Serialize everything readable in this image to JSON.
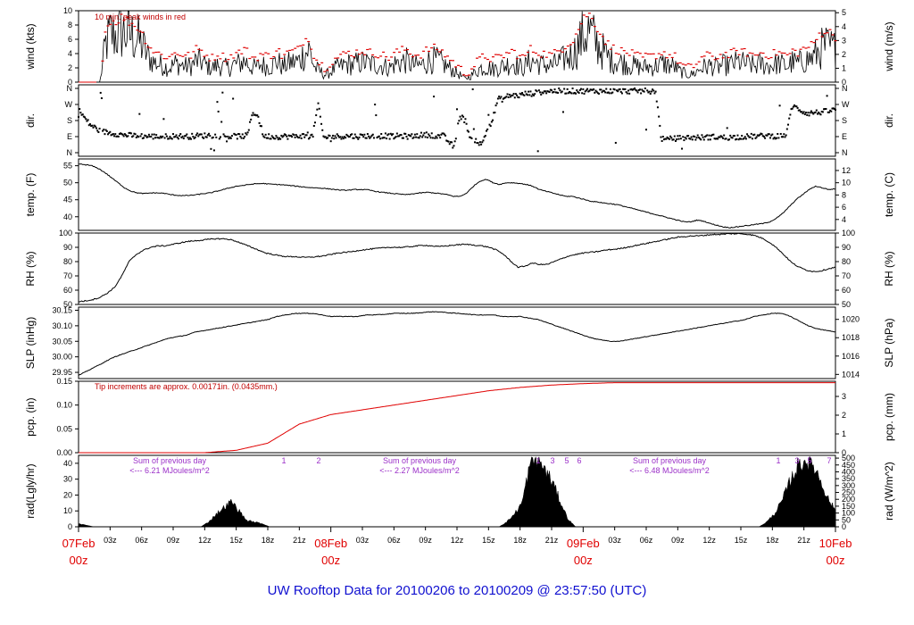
{
  "title": "UW Rooftop Data for 20100206  to  20100209 @ 23:57:50  (UTC)",
  "chart_data": {
    "type": "line",
    "x_days": [
      {
        "label": "07Feb",
        "sub": "00z"
      },
      {
        "label": "08Feb",
        "sub": "00z"
      },
      {
        "label": "09Feb",
        "sub": "00z"
      },
      {
        "label": "10Feb",
        "sub": "00z"
      }
    ],
    "x_hour_ticks": [
      "03z",
      "06z",
      "09z",
      "12z",
      "15z",
      "18z",
      "21z"
    ],
    "panels": [
      {
        "key": "wind",
        "left_label": "wind (kts)",
        "right_label": "wind (m/s)",
        "left_ticks": [
          0,
          2,
          4,
          6,
          8,
          10
        ],
        "left_range": [
          0,
          10
        ],
        "right_ticks": [
          0,
          1,
          2,
          3,
          4,
          5
        ],
        "annotation": "10 min. peak winds in red",
        "series_hourly": [
          0,
          0,
          0,
          0,
          0,
          5.2,
          6.8,
          6.5,
          7.2,
          6.8,
          6.5,
          6.0,
          5.0,
          3.5,
          2.8,
          2.5,
          2.2,
          2.0,
          2.6,
          2.4,
          2.2,
          2.3,
          3.0,
          2.8,
          2.2,
          2.0,
          2.4,
          2.1,
          2.0,
          2.5,
          2.6,
          3.0,
          2.2,
          2.0,
          2.5,
          2.2,
          2.3,
          3.0,
          2.1,
          2.6,
          2.8,
          2.9,
          4.0,
          4.5,
          2.0,
          1.5,
          1.0,
          1.5,
          2.0,
          2.2,
          2.6,
          2.4,
          2.7,
          2.8,
          2.6,
          2.5,
          2.4,
          2.2,
          2.0,
          2.6,
          2.8,
          3.0,
          2.5,
          2.3,
          2.4,
          2.9,
          3.1,
          3.0,
          2.5,
          2.0,
          1.5,
          1.0,
          0.5,
          0.8,
          1.5,
          2.0,
          2.2,
          1.8,
          2.0,
          2.2,
          2.5,
          2.8,
          2.2,
          2.0,
          3.0,
          2.8,
          2.5,
          2.4,
          2.3,
          2.6,
          3.0,
          3.5,
          3.8,
          5.0,
          6.5,
          7.2,
          6.0,
          5.0,
          4.0,
          3.2,
          3.0,
          2.8,
          2.6,
          2.4,
          2.2,
          2.0,
          2.2,
          2.1,
          2.4,
          2.6,
          2.3,
          2.2,
          1.5,
          1.2,
          1.0,
          1.4,
          2.0,
          2.2,
          2.3,
          2.0,
          2.4,
          2.3,
          2.6,
          2.8,
          2.6,
          2.5,
          2.2,
          2.6,
          2.4,
          2.3,
          2.6,
          2.5,
          2.2,
          2.8,
          2.6,
          3.0,
          3.2,
          3.5,
          4.5,
          5.0,
          4.8,
          4.5
        ],
        "peaks_hourly": [
          0,
          0,
          0,
          0,
          0,
          7.0,
          8.5,
          8.2,
          9.0,
          8.5,
          8.0,
          7.5,
          6.5,
          5.0,
          4.2,
          3.8,
          3.5,
          3.3,
          4.0,
          3.8,
          3.5,
          3.6,
          4.5,
          4.2,
          3.5,
          3.2,
          3.8,
          3.4,
          3.2,
          3.8,
          4.0,
          4.5,
          3.5,
          3.2,
          3.8,
          3.5,
          3.6,
          4.5,
          3.4,
          4.0,
          4.2,
          4.4,
          5.8,
          6.0,
          3.2,
          2.5,
          1.8,
          2.6,
          3.2,
          3.5,
          4.0,
          3.8,
          4.1,
          4.2,
          4.0,
          3.9,
          3.8,
          3.5,
          3.2,
          4.0,
          4.2,
          4.5,
          3.9,
          3.6,
          3.8,
          4.4,
          4.6,
          4.5,
          3.9,
          3.2,
          2.5,
          1.8,
          1.0,
          1.5,
          2.5,
          3.2,
          3.5,
          3.0,
          3.2,
          3.5,
          3.9,
          4.2,
          3.5,
          3.2,
          4.5,
          4.2,
          3.9,
          3.8,
          3.6,
          4.0,
          4.5,
          5.2,
          5.6,
          7.0,
          8.8,
          9.5,
          8.2,
          7.0,
          5.8,
          4.8,
          4.5,
          4.2,
          4.0,
          3.8,
          3.5,
          3.2,
          3.5,
          3.4,
          3.8,
          4.0,
          3.6,
          3.5,
          2.5,
          2.0,
          1.8,
          2.3,
          3.2,
          3.5,
          3.6,
          3.2,
          3.8,
          3.6,
          4.0,
          4.2,
          4.0,
          3.9,
          3.5,
          4.0,
          3.8,
          3.6,
          4.0,
          3.9,
          3.5,
          4.2,
          4.0,
          4.5,
          4.8,
          5.2,
          6.5,
          7.0,
          6.8,
          6.2
        ]
      },
      {
        "key": "dir",
        "left_label": "dir.",
        "right_label": "dir.",
        "ticks": [
          "N",
          "W",
          "S",
          "E",
          "N"
        ],
        "range": [
          0,
          360
        ],
        "series_hourly": [
          240,
          200,
          160,
          140,
          120,
          115,
          110,
          105,
          100,
          98,
          95,
          95,
          92,
          92,
          90,
          90,
          90,
          92,
          92,
          92,
          90,
          92,
          95,
          95,
          98,
          95,
          92,
          92,
          90,
          92,
          92,
          95,
          230,
          200,
          90,
          92,
          88,
          90,
          92,
          90,
          92,
          95,
          90,
          92,
          270,
          85,
          88,
          90,
          92,
          92,
          95,
          90,
          92,
          95,
          90,
          92,
          95,
          92,
          90,
          95,
          92,
          90,
          95,
          98,
          100,
          98,
          92,
          95,
          60,
          30,
          210,
          180,
          80,
          70,
          40,
          130,
          180,
          300,
          300,
          320,
          320,
          320,
          330,
          330,
          335,
          340,
          345,
          345,
          345,
          345,
          345,
          345,
          345,
          345,
          345,
          345,
          345,
          345,
          345,
          345,
          345,
          345,
          345,
          345,
          345,
          345,
          345,
          80,
          70,
          80,
          80,
          82,
          84,
          85,
          85,
          85,
          88,
          88,
          85,
          85,
          86,
          88,
          90,
          90,
          92,
          92,
          95,
          95,
          92,
          95,
          100,
          260,
          250,
          230,
          220,
          225,
          225,
          230,
          235,
          240
        ]
      },
      {
        "key": "temp",
        "left_label": "temp. (F)",
        "right_label": "temp. (C)",
        "left_ticks": [
          40,
          45,
          50,
          55
        ],
        "left_range": [
          36,
          57
        ],
        "right_ticks": [
          4,
          6,
          8,
          10,
          12
        ],
        "series_hourly": [
          55.5,
          55.3,
          55.0,
          54.2,
          53.0,
          51.5,
          50.0,
          48.5,
          47.5,
          47.0,
          46.8,
          47.0,
          47.0,
          46.9,
          46.5,
          46.3,
          46.2,
          46.3,
          46.5,
          46.8,
          47.0,
          47.5,
          48.0,
          48.5,
          49.0,
          49.2,
          49.5,
          49.7,
          49.8,
          49.6,
          49.5,
          49.4,
          49.2,
          49.0,
          48.8,
          48.6,
          48.5,
          48.4,
          48.2,
          48.0,
          47.8,
          47.8,
          48.0,
          48.0,
          47.9,
          47.5,
          47.2,
          47.0,
          46.8,
          46.6,
          46.5,
          46.8,
          47.0,
          47.2,
          47.0,
          46.8,
          46.5,
          46.0,
          46.0,
          47.0,
          49.0,
          50.5,
          51.0,
          50.0,
          49.5,
          50.0,
          50.0,
          49.8,
          49.5,
          49.0,
          48.0,
          47.5,
          47.0,
          46.5,
          46.0,
          46.0,
          45.5,
          45.0,
          44.5,
          44.3,
          44.0,
          43.8,
          43.5,
          43.0,
          42.5,
          42.0,
          41.5,
          41.0,
          40.5,
          40.0,
          39.5,
          39.0,
          38.5,
          38.5,
          39.0,
          38.7,
          38.0,
          37.5,
          37.0,
          36.8,
          37.0,
          37.3,
          37.5,
          37.8,
          38.0,
          38.5,
          39.5,
          41.0,
          43.0,
          45.0,
          46.5,
          48.0,
          49.0,
          48.5,
          48.0,
          48.2
        ]
      },
      {
        "key": "rh",
        "left_label": "RH (%)",
        "right_label": "RH (%)",
        "left_ticks": [
          50,
          60,
          70,
          80,
          90,
          100
        ],
        "left_range": [
          50,
          100
        ],
        "right_ticks": [
          50,
          60,
          70,
          80,
          90,
          100
        ],
        "series_hourly": [
          52,
          52.5,
          53.5,
          55,
          58,
          62,
          70,
          80,
          85,
          88,
          90,
          91,
          91,
          92,
          93,
          94,
          94.5,
          95,
          95.5,
          96,
          96,
          95.5,
          94,
          92,
          90,
          88,
          86,
          85,
          84,
          83.5,
          83.5,
          83,
          83,
          83.5,
          84,
          85,
          86,
          86.5,
          87,
          88,
          88.5,
          89,
          89.5,
          90,
          90,
          90,
          90.5,
          91,
          91.5,
          91,
          90.5,
          91,
          91.5,
          92,
          92,
          91.5,
          91,
          90,
          88,
          85,
          80,
          76,
          77,
          79,
          78,
          78,
          80,
          82,
          84,
          85,
          86,
          86.5,
          87,
          88,
          88.5,
          89,
          90,
          91,
          92,
          93,
          94,
          95,
          96,
          97,
          97.5,
          98,
          98,
          98.5,
          99,
          99,
          99.5,
          99.5,
          99.5,
          99,
          98,
          96,
          93,
          89,
          84,
          79,
          76,
          74,
          73,
          73.5,
          75,
          76
        ]
      },
      {
        "key": "slp",
        "left_label": "SLP (inHg)",
        "right_label": "SLP (hPa)",
        "left_ticks": [
          29.95,
          30.0,
          30.05,
          30.1,
          30.15
        ],
        "left_range": [
          29.93,
          30.16
        ],
        "right_ticks": [
          1014,
          1016,
          1018,
          1020
        ],
        "series_hourly": [
          29.94,
          29.955,
          29.97,
          29.985,
          30.0,
          30.01,
          30.02,
          30.03,
          30.04,
          30.05,
          30.06,
          30.065,
          30.07,
          30.08,
          30.085,
          30.09,
          30.095,
          30.1,
          30.105,
          30.11,
          30.115,
          30.12,
          30.13,
          30.135,
          30.14,
          30.14,
          30.14,
          30.135,
          30.13,
          30.13,
          30.13,
          30.13,
          30.135,
          30.135,
          30.137,
          30.14,
          30.14,
          30.14,
          30.142,
          30.145,
          30.145,
          30.142,
          30.14,
          30.138,
          30.135,
          30.135,
          30.135,
          30.13,
          30.13,
          30.13,
          30.125,
          30.12,
          30.11,
          30.1,
          30.09,
          30.08,
          30.07,
          30.06,
          30.055,
          30.05,
          30.05,
          30.055,
          30.06,
          30.065,
          30.07,
          30.075,
          30.08,
          30.085,
          30.09,
          30.095,
          30.1,
          30.105,
          30.11,
          30.115,
          30.12,
          30.13,
          30.135,
          30.14,
          30.14,
          30.13,
          30.115,
          30.1,
          30.09,
          30.085,
          30.08
        ]
      },
      {
        "key": "pcp",
        "left_label": "pcp. (in)",
        "right_label": "pcp. (mm)",
        "left_ticks": [
          0.0,
          0.05,
          0.1,
          0.15
        ],
        "left_range": [
          0,
          0.15
        ],
        "right_ticks": [
          0,
          1,
          2,
          3
        ],
        "annotation": "Tip increments are approx. 0.00171in. (0.0435mm.)",
        "series_hourly": [
          0,
          0,
          0,
          0,
          0,
          0.005,
          0.02,
          0.06,
          0.08,
          0.09,
          0.1,
          0.11,
          0.12,
          0.13,
          0.137,
          0.142,
          0.145,
          0.147,
          0.147,
          0.147,
          0.147,
          0.147,
          0.147,
          0.147,
          0.147
        ]
      },
      {
        "key": "rad",
        "left_label": "rad(Lgly/hr)",
        "right_label": "rad (W/m^2)",
        "left_ticks": [
          0,
          10,
          20,
          30,
          40
        ],
        "left_range": [
          0,
          45
        ],
        "right_ticks": [
          0,
          50,
          100,
          150,
          200,
          250,
          300,
          350,
          400,
          450,
          500
        ],
        "series_hourly": [
          2,
          1,
          0,
          0,
          0,
          0,
          0,
          0,
          0,
          0,
          0,
          0,
          0,
          0,
          0,
          0,
          0,
          3,
          8,
          12,
          16,
          10,
          4,
          3,
          2,
          0,
          0,
          0,
          0,
          0,
          0,
          0,
          0,
          0,
          0,
          0,
          0,
          0,
          0,
          0,
          0,
          0,
          0,
          0,
          0,
          0,
          0,
          0,
          0,
          0,
          0,
          0,
          0,
          0,
          0,
          0,
          3,
          8,
          15,
          38,
          44,
          36,
          28,
          16,
          5,
          0,
          0,
          0,
          0,
          0,
          0,
          0,
          0,
          0,
          0,
          0,
          0,
          0,
          0,
          0,
          0,
          0,
          0,
          0,
          0,
          0,
          0,
          0,
          0,
          0,
          3,
          8,
          16,
          28,
          38,
          42,
          40,
          30,
          18,
          10
        ],
        "notes": [
          {
            "text": "Sum of previous day",
            "value": "<--- 6.21 MJoules/m^2"
          },
          {
            "text": "Sum of previous day",
            "value": "<--- 2.27 MJoules/m^2"
          },
          {
            "text": "Sum of previous day",
            "value": "<--- 6.48 MJoules/m^2"
          }
        ],
        "peak_marks": [
          {
            "day": 0,
            "labels": [
              "1",
              "2"
            ]
          },
          {
            "day": 1,
            "labels": [
              "1",
              "3",
              "5",
              "6"
            ]
          },
          {
            "day": 2,
            "labels": [
              "1",
              "3",
              "5",
              "7"
            ]
          }
        ]
      }
    ]
  }
}
